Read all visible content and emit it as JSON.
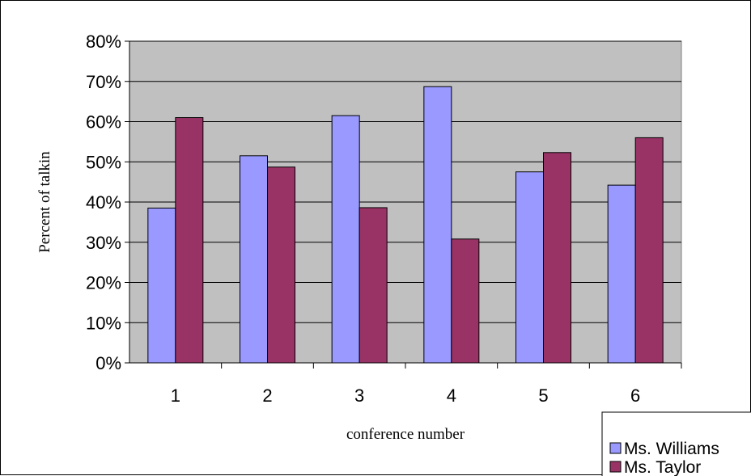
{
  "chart_data": {
    "type": "bar",
    "categories": [
      "1",
      "2",
      "3",
      "4",
      "5",
      "6"
    ],
    "series": [
      {
        "name": "Ms. Williams",
        "values": [
          0.385,
          0.515,
          0.615,
          0.687,
          0.475,
          0.442
        ],
        "color": "#9999ff"
      },
      {
        "name": "Ms. Taylor",
        "values": [
          0.61,
          0.487,
          0.386,
          0.308,
          0.523,
          0.56
        ],
        "color": "#993366"
      }
    ],
    "xlabel": "conference number",
    "ylabel": "Percent of talkin",
    "ylim": [
      0,
      0.8
    ],
    "yticks": [
      "0%",
      "10%",
      "20%",
      "30%",
      "40%",
      "50%",
      "60%",
      "70%",
      "80%"
    ],
    "plot_background": "#c0c0c0",
    "grid": true,
    "legend_position": "bottom-right"
  }
}
